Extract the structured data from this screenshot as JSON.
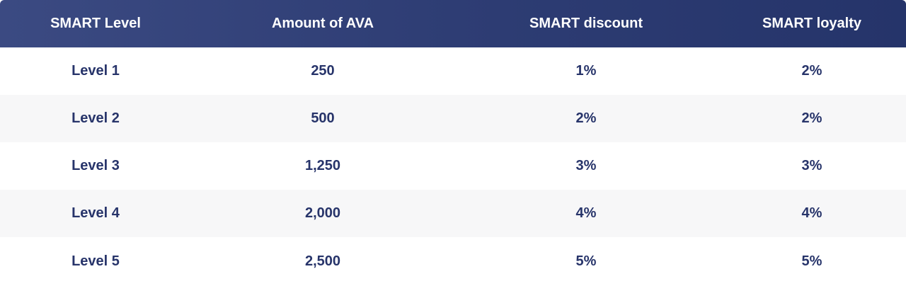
{
  "table": {
    "headers": [
      "SMART Level",
      "Amount of AVA",
      "SMART discount",
      "SMART loyalty"
    ],
    "rows": [
      [
        "Level 1",
        "250",
        "1%",
        "2%"
      ],
      [
        "Level 2",
        "500",
        "2%",
        "2%"
      ],
      [
        "Level 3",
        "1,250",
        "3%",
        "3%"
      ],
      [
        "Level 4",
        "2,000",
        "4%",
        "4%"
      ],
      [
        "Level 5",
        "2,500",
        "5%",
        "5%"
      ]
    ]
  },
  "colors": {
    "header_bg_start": "#3b4a82",
    "header_bg_end": "#25346a",
    "header_text": "#ffffff",
    "body_text": "#27346a",
    "row_alt_bg": "#f7f7f8"
  }
}
